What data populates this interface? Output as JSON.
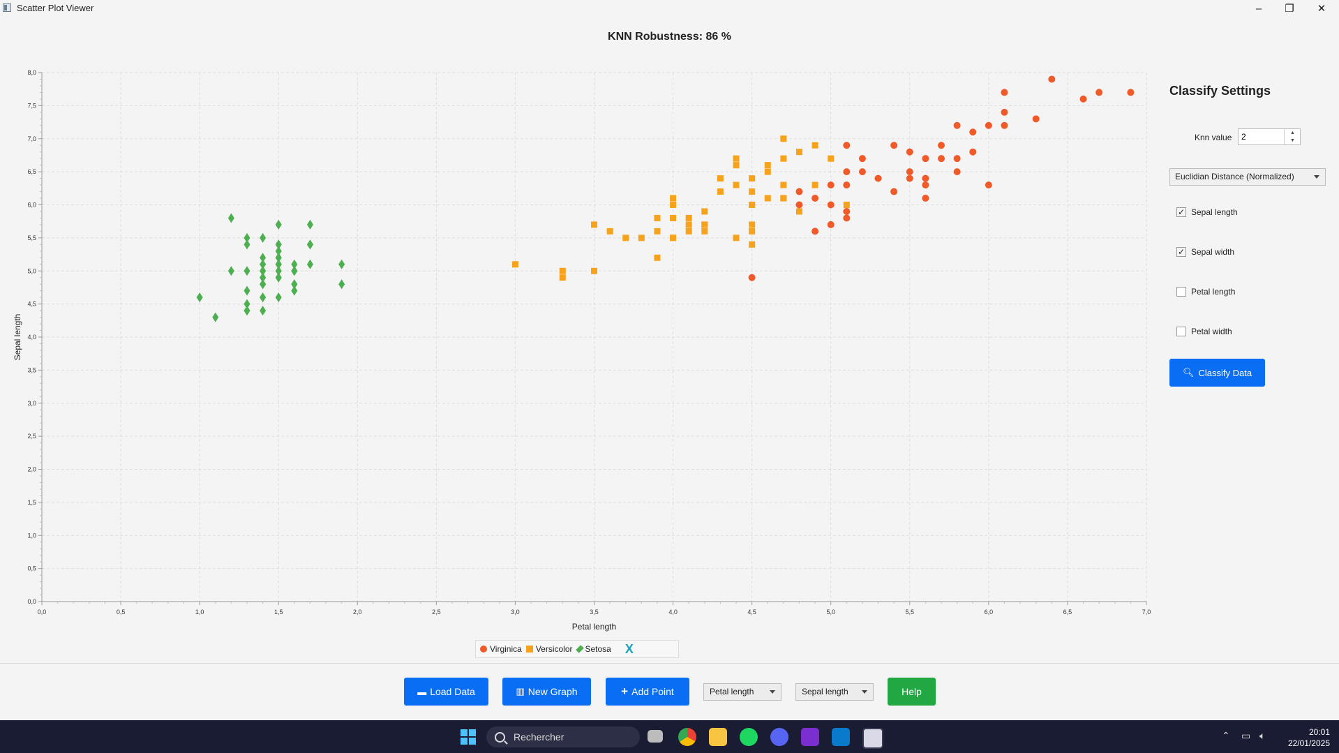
{
  "window": {
    "title": "Scatter Plot Viewer",
    "controls": [
      "–",
      "❐",
      "✕"
    ]
  },
  "chart_data": {
    "type": "scatter",
    "title": "KNN Robustness: 86 %",
    "xlabel": "Petal length",
    "ylabel": "Sepal length",
    "xlim": [
      0,
      7
    ],
    "ylim": [
      0,
      8
    ],
    "xticks": [
      "0,0",
      "0,5",
      "1,0",
      "1,5",
      "2,0",
      "2,5",
      "3,0",
      "3,5",
      "4,0",
      "4,5",
      "5,0",
      "5,5",
      "6,0",
      "6,5",
      "7,0"
    ],
    "yticks": [
      "0,0",
      "0,5",
      "1,0",
      "1,5",
      "2,0",
      "2,5",
      "3,0",
      "3,5",
      "4,0",
      "4,5",
      "5,0",
      "5,5",
      "6,0",
      "6,5",
      "7,0",
      "7,5",
      "8,0"
    ],
    "grid": true,
    "legend_position": "bottom",
    "series": [
      {
        "name": "Virginica",
        "marker": "circle",
        "color": "#f05a28",
        "points": [
          [
            6.1,
            7.7
          ],
          [
            6.4,
            7.9
          ],
          [
            6.6,
            7.6
          ],
          [
            6.7,
            7.7
          ],
          [
            6.9,
            7.7
          ],
          [
            6.1,
            7.4
          ],
          [
            6.3,
            7.3
          ],
          [
            5.8,
            7.2
          ],
          [
            6.0,
            7.2
          ],
          [
            6.1,
            7.2
          ],
          [
            5.9,
            7.1
          ],
          [
            5.1,
            6.9
          ],
          [
            5.4,
            6.9
          ],
          [
            5.7,
            6.9
          ],
          [
            5.5,
            6.8
          ],
          [
            5.9,
            6.8
          ],
          [
            5.2,
            6.7
          ],
          [
            5.6,
            6.7
          ],
          [
            5.7,
            6.7
          ],
          [
            5.8,
            6.7
          ],
          [
            5.1,
            6.5
          ],
          [
            5.2,
            6.5
          ],
          [
            5.5,
            6.5
          ],
          [
            5.8,
            6.5
          ],
          [
            5.3,
            6.4
          ],
          [
            5.5,
            6.4
          ],
          [
            5.6,
            6.4
          ],
          [
            5.0,
            6.3
          ],
          [
            5.1,
            6.3
          ],
          [
            5.6,
            6.3
          ],
          [
            6.0,
            6.3
          ],
          [
            4.8,
            6.2
          ],
          [
            5.4,
            6.2
          ],
          [
            4.9,
            6.1
          ],
          [
            5.6,
            6.1
          ],
          [
            4.8,
            6.0
          ],
          [
            5.0,
            6.0
          ],
          [
            5.1,
            5.9
          ],
          [
            5.1,
            5.8
          ],
          [
            5.0,
            5.7
          ],
          [
            4.9,
            5.6
          ],
          [
            4.5,
            4.9
          ]
        ]
      },
      {
        "name": "Versicolor",
        "marker": "square",
        "color": "#f7a21b",
        "points": [
          [
            4.7,
            7.0
          ],
          [
            4.5,
            6.4
          ],
          [
            4.9,
            6.9
          ],
          [
            4.0,
            5.5
          ],
          [
            4.6,
            6.5
          ],
          [
            4.5,
            5.7
          ],
          [
            4.7,
            6.3
          ],
          [
            3.3,
            4.9
          ],
          [
            4.6,
            6.6
          ],
          [
            3.9,
            5.2
          ],
          [
            3.5,
            5.0
          ],
          [
            4.2,
            5.9
          ],
          [
            4.0,
            6.0
          ],
          [
            4.7,
            6.1
          ],
          [
            3.6,
            5.6
          ],
          [
            4.4,
            6.7
          ],
          [
            4.5,
            5.6
          ],
          [
            4.1,
            5.8
          ],
          [
            4.5,
            6.2
          ],
          [
            3.9,
            5.6
          ],
          [
            4.8,
            5.9
          ],
          [
            4.0,
            6.1
          ],
          [
            4.9,
            6.3
          ],
          [
            4.7,
            6.1
          ],
          [
            4.3,
            6.4
          ],
          [
            4.4,
            6.6
          ],
          [
            4.8,
            6.8
          ],
          [
            5.0,
            6.7
          ],
          [
            4.5,
            6.0
          ],
          [
            3.5,
            5.7
          ],
          [
            3.8,
            5.5
          ],
          [
            3.7,
            5.5
          ],
          [
            3.9,
            5.8
          ],
          [
            5.1,
            6.0
          ],
          [
            4.5,
            5.4
          ],
          [
            4.5,
            6.0
          ],
          [
            4.7,
            6.7
          ],
          [
            4.4,
            6.3
          ],
          [
            4.1,
            5.6
          ],
          [
            4.0,
            5.5
          ],
          [
            4.4,
            5.5
          ],
          [
            4.6,
            6.1
          ],
          [
            4.0,
            5.8
          ],
          [
            3.3,
            5.0
          ],
          [
            4.2,
            5.6
          ],
          [
            4.2,
            5.7
          ],
          [
            4.2,
            5.7
          ],
          [
            4.3,
            6.2
          ],
          [
            3.0,
            5.1
          ],
          [
            4.1,
            5.7
          ]
        ]
      },
      {
        "name": "Setosa",
        "marker": "diamond",
        "color": "#4caf50",
        "points": [
          [
            1.4,
            5.1
          ],
          [
            1.4,
            4.9
          ],
          [
            1.3,
            4.7
          ],
          [
            1.5,
            4.6
          ],
          [
            1.4,
            5.0
          ],
          [
            1.7,
            5.4
          ],
          [
            1.4,
            4.6
          ],
          [
            1.5,
            5.0
          ],
          [
            1.4,
            4.4
          ],
          [
            1.5,
            4.9
          ],
          [
            1.5,
            5.4
          ],
          [
            1.6,
            4.8
          ],
          [
            1.4,
            4.8
          ],
          [
            1.1,
            4.3
          ],
          [
            1.2,
            5.8
          ],
          [
            1.5,
            5.7
          ],
          [
            1.3,
            5.4
          ],
          [
            1.4,
            5.1
          ],
          [
            1.7,
            5.7
          ],
          [
            1.5,
            5.1
          ],
          [
            1.7,
            5.4
          ],
          [
            1.5,
            5.1
          ],
          [
            1.0,
            4.6
          ],
          [
            1.7,
            5.1
          ],
          [
            1.9,
            4.8
          ],
          [
            1.6,
            5.0
          ],
          [
            1.6,
            5.0
          ],
          [
            1.5,
            5.2
          ],
          [
            1.4,
            5.2
          ],
          [
            1.6,
            4.7
          ],
          [
            1.6,
            4.8
          ],
          [
            1.5,
            5.4
          ],
          [
            1.5,
            5.2
          ],
          [
            1.4,
            5.5
          ],
          [
            1.5,
            4.9
          ],
          [
            1.2,
            5.0
          ],
          [
            1.3,
            5.5
          ],
          [
            1.4,
            4.9
          ],
          [
            1.3,
            4.4
          ],
          [
            1.5,
            5.1
          ],
          [
            1.3,
            5.0
          ],
          [
            1.3,
            4.5
          ],
          [
            1.3,
            4.4
          ],
          [
            1.6,
            5.0
          ],
          [
            1.9,
            5.1
          ],
          [
            1.4,
            4.8
          ],
          [
            1.6,
            5.1
          ],
          [
            1.4,
            4.6
          ],
          [
            1.5,
            5.3
          ],
          [
            1.4,
            5.0
          ]
        ]
      }
    ]
  },
  "legend": {
    "items": [
      "Virginica",
      "Versicolor",
      "Setosa"
    ],
    "close": "X"
  },
  "settings": {
    "title": "Classify Settings",
    "knn_label": "Knn value",
    "knn_value": "2",
    "distance": "Euclidian Distance (Normalized)",
    "checkboxes": [
      {
        "label": "Sepal length",
        "checked": true
      },
      {
        "label": "Sepal width",
        "checked": true
      },
      {
        "label": "Petal length",
        "checked": false
      },
      {
        "label": "Petal width",
        "checked": false
      }
    ],
    "classify_button": "Classify Data"
  },
  "toolbar": {
    "load": "Load Data",
    "new_graph": "New Graph",
    "add_point": "Add Point",
    "x_axis": "Petal length",
    "y_axis": "Sepal length",
    "help": "Help",
    "colors": {
      "primary": "#0a6ef5",
      "help": "#22a843"
    }
  },
  "taskbar": {
    "search": "Rechercher",
    "time": "20:01",
    "date": "22/01/2025"
  }
}
